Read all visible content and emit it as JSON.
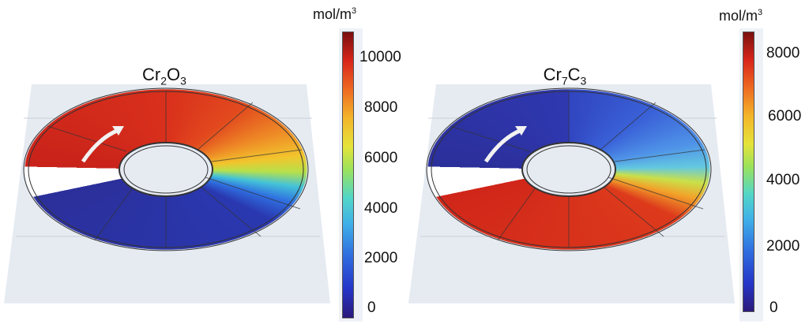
{
  "panels": [
    {
      "title_main": "Cr",
      "title_sub1": "2",
      "title_mid": "O",
      "title_sub2": "3",
      "colorbar": {
        "unit": "mol/m",
        "unit_sup": "3",
        "ticks": [
          "10000",
          "8000",
          "6000",
          "4000",
          "2000",
          "0"
        ],
        "range": [
          0,
          11000
        ],
        "colormap": "jet"
      }
    },
    {
      "title_main": "Cr",
      "title_sub1": "7",
      "title_mid": "C",
      "title_sub2": "3",
      "colorbar": {
        "unit": "mol/m",
        "unit_sup": "3",
        "ticks": [
          "8000",
          "6000",
          "4000",
          "2000",
          "0"
        ],
        "range": [
          0,
          8700
        ],
        "colormap": "jet"
      }
    }
  ],
  "colors": {
    "plane": "#e6ebf2",
    "high": "#d8251a",
    "low": "#2b2f9a"
  }
}
